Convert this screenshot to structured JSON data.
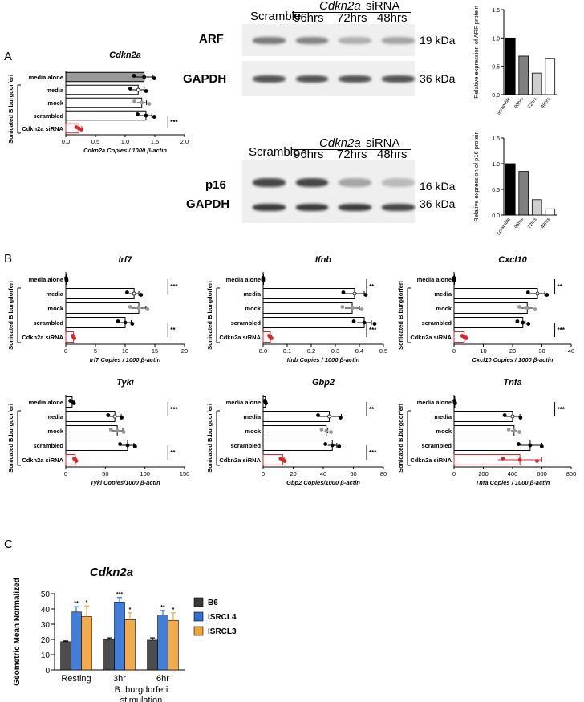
{
  "panels": {
    "a": "A",
    "b": "B",
    "c": "C"
  },
  "blots": [
    {
      "header": {
        "cdkn": "Cdkn2a",
        "sirna": "siRNA"
      },
      "lanes": [
        "Scramble",
        "96hrs",
        "72hrs",
        "48hrs"
      ],
      "rows": [
        {
          "protein": "ARF",
          "kda": "19 kDa",
          "bands": [
            0.55,
            0.5,
            0.3,
            0.35
          ]
        },
        {
          "protein": "GAPDH",
          "kda": "36 kDa",
          "bands": [
            0.75,
            0.75,
            0.75,
            0.75
          ]
        }
      ]
    },
    {
      "header": {
        "cdkn": "Cdkn2a",
        "sirna": "siRNA"
      },
      "lanes": [
        "Scramble",
        "96hrs",
        "72hrs",
        "48hrs"
      ],
      "rows": [
        {
          "protein": "p16",
          "kda": "16 kDa",
          "bands": [
            0.8,
            0.8,
            0.35,
            0.25
          ]
        },
        {
          "protein": "GAPDH",
          "kda": "36 kDa",
          "bands": [
            0.85,
            0.85,
            0.85,
            0.8
          ]
        }
      ]
    }
  ],
  "chart_data": [
    {
      "type": "bar",
      "ylabel": "Relative expression of ARF protein",
      "categories": [
        "Scramble",
        "96hrs",
        "72hrs",
        "48hrs"
      ],
      "values": [
        1.0,
        0.68,
        0.38,
        0.64
      ],
      "colors": [
        "#000000",
        "#7f7f7f",
        "#cfcfcf",
        "#ffffff"
      ],
      "ylim": [
        0,
        1.5
      ],
      "ticks": [
        "0.0",
        "0.5",
        "1.0",
        "1.5"
      ]
    },
    {
      "type": "bar",
      "ylabel": "Relative expression of p16 protein",
      "categories": [
        "Scramble",
        "96hrs",
        "72hrs",
        "48hrs"
      ],
      "values": [
        1.0,
        0.85,
        0.3,
        0.12
      ],
      "colors": [
        "#000000",
        "#7f7f7f",
        "#cfcfcf",
        "#ffffff"
      ],
      "ylim": [
        0,
        1.5
      ],
      "ticks": [
        "0.0",
        "0.5",
        "1.0",
        "1.5"
      ]
    },
    {
      "type": "bar",
      "orientation": "horizontal",
      "title": "Cdkn2a",
      "xlabel": "Cdkn2a Copies / 1000 β-actin",
      "group_label": "Sonicated B.burgdorferi",
      "categories": [
        "media alone",
        "media",
        "mock",
        "scrambled",
        "Cdkn2a siRNA"
      ],
      "values": [
        1.32,
        1.22,
        1.28,
        1.35,
        0.22
      ],
      "errors": [
        0.15,
        0.1,
        0.08,
        0.1,
        0.05
      ],
      "xlim": [
        0,
        2.0
      ],
      "ticks": [
        "0.0",
        "0.5",
        "1.0",
        "1.5",
        "2.0"
      ],
      "significance": [
        {
          "label": "***",
          "from": 3,
          "to": 4
        }
      ]
    },
    {
      "type": "bar",
      "orientation": "horizontal",
      "title": "Irf7",
      "xlabel": "Irf7 Copies / 1000 β-actin",
      "group_label": "Sonicated B.burgdorferi",
      "categories": [
        "media alone",
        "media",
        "mock",
        "scrambled",
        "Cdkn2a siRNA"
      ],
      "values": [
        0.1,
        11.5,
        12.3,
        10.0,
        1.3
      ],
      "errors": [
        0.05,
        0.8,
        1.2,
        1.0,
        0.1
      ],
      "xlim": [
        0,
        20
      ],
      "ticks": [
        "0",
        "5",
        "10",
        "15",
        "20"
      ],
      "significance": [
        {
          "label": "***",
          "from": 0,
          "to": 1
        },
        {
          "label": "**",
          "from": 3,
          "to": 4
        }
      ]
    },
    {
      "type": "bar",
      "orientation": "horizontal",
      "title": "Ifnb",
      "xlabel": "Ifnb Copies / 1000 β-actin",
      "group_label": "Sonicated B.burgdorferi",
      "categories": [
        "media alone",
        "media",
        "mock",
        "scrambled",
        "Cdkn2a siRNA"
      ],
      "values": [
        0.0,
        0.38,
        0.37,
        0.42,
        0.03
      ],
      "errors": [
        0.0,
        0.04,
        0.03,
        0.03,
        0.005
      ],
      "xlim": [
        0,
        0.5
      ],
      "ticks": [
        "0.0",
        "0.1",
        "0.2",
        "0.3",
        "0.4",
        "0.5"
      ],
      "significance": [
        {
          "label": "**",
          "from": 0,
          "to": 1
        },
        {
          "label": "***",
          "from": 3,
          "to": 4
        }
      ]
    },
    {
      "type": "bar",
      "orientation": "horizontal",
      "title": "Cxcl10",
      "xlabel": "Cxcl10 Copies / 1000 β-actin",
      "group_label": "Sonicated B.burgdorferi",
      "categories": [
        "media alone",
        "media",
        "mock",
        "scrambled",
        "Cdkn2a siRNA"
      ],
      "values": [
        0.0,
        28.5,
        25.0,
        23.5,
        3.5
      ],
      "errors": [
        0.0,
        2.5,
        2.0,
        0.8,
        0.8
      ],
      "xlim": [
        0,
        40
      ],
      "ticks": [
        "0",
        "10",
        "20",
        "30",
        "40"
      ],
      "significance": [
        {
          "label": "**",
          "from": 0,
          "to": 1
        },
        {
          "label": "***",
          "from": 3,
          "to": 4
        }
      ]
    },
    {
      "type": "bar",
      "orientation": "horizontal",
      "title": "Tyki",
      "xlabel": "Tyki Copies/1000 β-actin",
      "group_label": "Sonicated B.burgdorferi",
      "categories": [
        "media alone",
        "media",
        "mock",
        "scrambled",
        "Cdkn2a siRNA"
      ],
      "values": [
        8,
        62,
        65,
        78,
        12
      ],
      "errors": [
        3,
        8,
        7,
        8,
        1
      ],
      "xlim": [
        0,
        150
      ],
      "ticks": [
        "0",
        "50",
        "100",
        "150"
      ],
      "significance": [
        {
          "label": "***",
          "from": 0,
          "to": 1
        },
        {
          "label": "**",
          "from": 3,
          "to": 4
        }
      ]
    },
    {
      "type": "bar",
      "orientation": "horizontal",
      "title": "Gbp2",
      "xlabel": "Gbp2 Copies/1000 β-actin",
      "group_label": "Sonicated B.burgdorferi",
      "categories": [
        "media alone",
        "media",
        "mock",
        "scrambled",
        "Cdkn2a siRNA"
      ],
      "values": [
        1.5,
        44,
        42,
        46,
        13
      ],
      "errors": [
        0.5,
        8,
        1,
        3,
        1
      ],
      "xlim": [
        0,
        80
      ],
      "ticks": [
        "0",
        "20",
        "40",
        "60",
        "80"
      ],
      "significance": [
        {
          "label": "**",
          "from": 0,
          "to": 1
        },
        {
          "label": "***",
          "from": 3,
          "to": 4
        }
      ]
    },
    {
      "type": "bar",
      "orientation": "horizontal",
      "title": "Tnfa",
      "xlabel": "Tnfa Copies / 1000 β-actin",
      "group_label": "Sonicated B.burgdorferi",
      "categories": [
        "media alone",
        "media",
        "mock",
        "scrambled",
        "Cdkn2a siRNA"
      ],
      "values": [
        5,
        400,
        410,
        520,
        450
      ],
      "errors": [
        3,
        50,
        20,
        80,
        150
      ],
      "xlim": [
        0,
        800
      ],
      "ticks": [
        "0",
        "200",
        "400",
        "600",
        "800"
      ],
      "significance": [
        {
          "label": "***",
          "from": 0,
          "to": 1
        }
      ]
    },
    {
      "type": "bar",
      "title": "Cdkn2a",
      "ylabel": "Geometric Mean Normalized",
      "categories": [
        "Resting",
        "3hr",
        "6hr"
      ],
      "xlabel_lines": [
        "B. burgdorferi",
        "stimulation"
      ],
      "series": [
        {
          "name": "B6",
          "values": [
            18.5,
            20.0,
            19.5
          ],
          "errors": [
            0.5,
            1.0,
            1.5
          ],
          "color": "#3a3a3a",
          "sig": [
            "",
            "",
            ""
          ]
        },
        {
          "name": "ISRCL4",
          "values": [
            38.0,
            44.5,
            36.0
          ],
          "errors": [
            3.5,
            3.0,
            3.0
          ],
          "color": "#2f6fd6",
          "sig": [
            "**",
            "***",
            "**"
          ]
        },
        {
          "name": "ISRCL3",
          "values": [
            35.0,
            33.0,
            32.5
          ],
          "errors": [
            7.0,
            4.5,
            5.0
          ],
          "color": "#f0a23a",
          "sig": [
            "*",
            "*",
            "*"
          ]
        }
      ],
      "ylim": [
        0,
        50
      ],
      "ticks": [
        "0",
        "10",
        "20",
        "30",
        "40",
        "50"
      ],
      "legend": "right"
    }
  ]
}
